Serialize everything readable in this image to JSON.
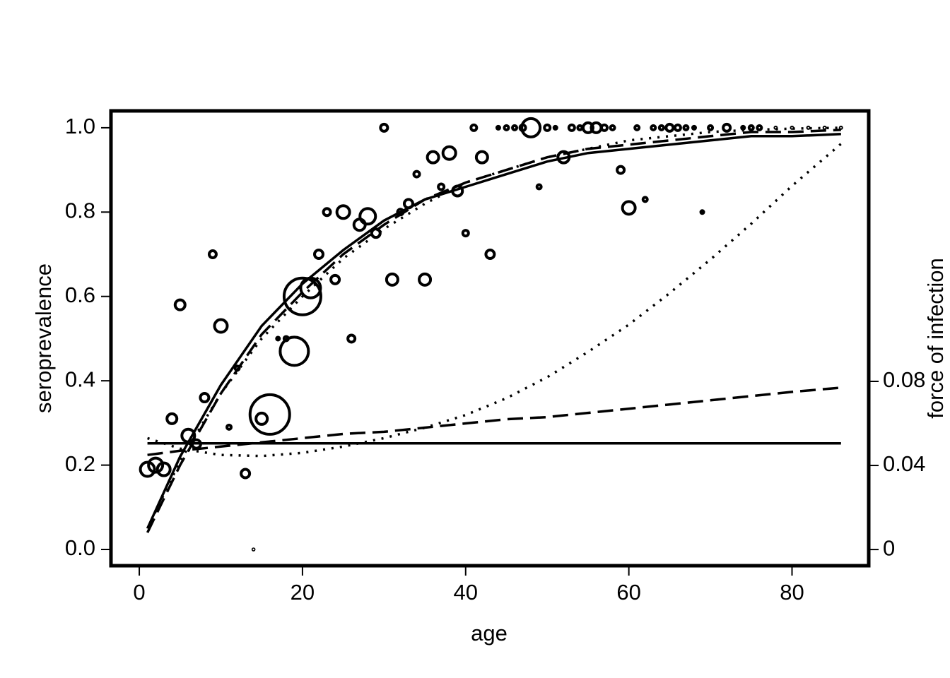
{
  "chart_data": {
    "type": "scatter",
    "xlabel": "age",
    "ylabel": "seroprevalence",
    "y2label": "force of infection",
    "xlim": [
      -3.47,
      89.4
    ],
    "ylim": [
      -0.0385,
      1.04
    ],
    "y2lim": [
      -0.0077,
      0.2087
    ],
    "xticks": [
      0,
      20,
      40,
      60,
      80
    ],
    "yticks": [
      {
        "value": 0,
        "label": "0.0"
      },
      0.2,
      0.4,
      0.6,
      0.8,
      {
        "value": 1,
        "label": "1.0"
      }
    ],
    "y2ticks": [
      0,
      0.04,
      0.08
    ],
    "series": [
      {
        "type": "bubble",
        "color": "#000000",
        "x": [
          1,
          2,
          3,
          4,
          5,
          6,
          7,
          8,
          9,
          10,
          11,
          12,
          13,
          14,
          15,
          16,
          17,
          18,
          19,
          20,
          21,
          22,
          23,
          24,
          25,
          26,
          27,
          28,
          29,
          30,
          31,
          32,
          33,
          34,
          35,
          36,
          37,
          38,
          39,
          40,
          41,
          42,
          43,
          44,
          45,
          46,
          47,
          48,
          49,
          50,
          51,
          52,
          53,
          54,
          55,
          56,
          57,
          58,
          59,
          60,
          61,
          62,
          63,
          64,
          65,
          66,
          67,
          68,
          69,
          70,
          72,
          74,
          75,
          76,
          78,
          80,
          82,
          84,
          86
        ],
        "values": [
          0.19,
          0.2,
          0.19,
          0.31,
          0.58,
          0.27,
          0.25,
          0.36,
          0.7,
          0.53,
          0.29,
          0.43,
          0.18,
          0.0,
          0.31,
          0.32,
          0.5,
          0.5,
          0.47,
          0.6,
          0.62,
          0.7,
          0.8,
          0.64,
          0.8,
          0.5,
          0.77,
          0.79,
          0.75,
          1.0,
          0.64,
          0.8,
          0.82,
          0.89,
          0.64,
          0.93,
          0.86,
          0.94,
          0.85,
          0.75,
          1.0,
          0.93,
          0.7,
          1.0,
          1.0,
          1.0,
          1.0,
          1.0,
          0.86,
          1.0,
          1.0,
          0.93,
          1.0,
          1.0,
          1.0,
          1.0,
          1.0,
          1.0,
          0.9,
          0.81,
          1.0,
          0.83,
          1.0,
          1.0,
          1.0,
          1.0,
          1.0,
          1.0,
          0.8,
          1.0,
          1.0,
          1.0,
          1.0,
          1.0,
          1.0,
          1.0,
          1.0,
          1.0,
          1.0
        ],
        "sizes": [
          12,
          12,
          11,
          9,
          9,
          11,
          8,
          8,
          7,
          11,
          5,
          5,
          8,
          2,
          10,
          30,
          4,
          5,
          22,
          28,
          16,
          8,
          7,
          8,
          11,
          7,
          10,
          13,
          8,
          7,
          10,
          6,
          8,
          6,
          10,
          10,
          6,
          11,
          9,
          6,
          6,
          10,
          8,
          4,
          5,
          5,
          6,
          15,
          5,
          6,
          4,
          10,
          6,
          5,
          9,
          9,
          6,
          5,
          7,
          11,
          5,
          5,
          5,
          5,
          7,
          6,
          5,
          4,
          4,
          5,
          7,
          4,
          5,
          5,
          3,
          3,
          3,
          3,
          3
        ]
      },
      {
        "type": "line",
        "dash": "solid",
        "color": "#000000",
        "x": [
          1,
          5,
          10,
          15,
          20,
          25,
          30,
          35,
          40,
          45,
          50,
          55,
          60,
          65,
          70,
          75,
          80,
          86
        ],
        "values": [
          0.05,
          0.22,
          0.39,
          0.53,
          0.63,
          0.71,
          0.78,
          0.83,
          0.86,
          0.89,
          0.92,
          0.94,
          0.95,
          0.96,
          0.97,
          0.98,
          0.98,
          0.985
        ]
      },
      {
        "type": "line",
        "dash": "dashed",
        "color": "#000000",
        "x": [
          1,
          5,
          10,
          15,
          20,
          25,
          30,
          35,
          40,
          45,
          50,
          55,
          60,
          65,
          70,
          75,
          80,
          86
        ],
        "values": [
          0.04,
          0.2,
          0.37,
          0.51,
          0.61,
          0.7,
          0.77,
          0.83,
          0.87,
          0.9,
          0.93,
          0.95,
          0.96,
          0.97,
          0.98,
          0.99,
          0.99,
          0.995
        ]
      },
      {
        "type": "line",
        "dash": "dotted",
        "color": "#000000",
        "x": [
          1,
          5,
          10,
          15,
          20,
          25,
          30,
          35,
          40,
          45,
          50,
          55,
          60,
          65,
          70,
          75,
          80,
          86
        ],
        "values": [
          0.05,
          0.21,
          0.37,
          0.5,
          0.6,
          0.69,
          0.76,
          0.82,
          0.87,
          0.9,
          0.93,
          0.95,
          0.97,
          0.98,
          0.99,
          0.995,
          0.998,
          1.0
        ]
      },
      {
        "type": "line",
        "dash": "solid",
        "color": "#000000",
        "axis": "y2",
        "x": [
          1,
          86
        ],
        "values": [
          0.0505,
          0.0505
        ]
      },
      {
        "type": "line",
        "dash": "dashed",
        "color": "#000000",
        "axis": "y2",
        "x": [
          1,
          5,
          10,
          15,
          20,
          25,
          30,
          35,
          40,
          45,
          50,
          55,
          60,
          65,
          70,
          75,
          80,
          86
        ],
        "values": [
          0.045,
          0.047,
          0.049,
          0.051,
          0.053,
          0.055,
          0.056,
          0.058,
          0.06,
          0.062,
          0.063,
          0.065,
          0.067,
          0.069,
          0.071,
          0.073,
          0.075,
          0.077
        ]
      },
      {
        "type": "line",
        "dash": "dotted",
        "color": "#000000",
        "axis": "y2",
        "x": [
          1,
          5,
          10,
          15,
          20,
          25,
          30,
          35,
          40,
          45,
          50,
          55,
          60,
          65,
          70,
          75,
          80,
          86
        ],
        "values": [
          0.053,
          0.048,
          0.045,
          0.0445,
          0.046,
          0.049,
          0.053,
          0.058,
          0.064,
          0.072,
          0.082,
          0.094,
          0.107,
          0.122,
          0.138,
          0.155,
          0.173,
          0.193
        ]
      }
    ]
  }
}
